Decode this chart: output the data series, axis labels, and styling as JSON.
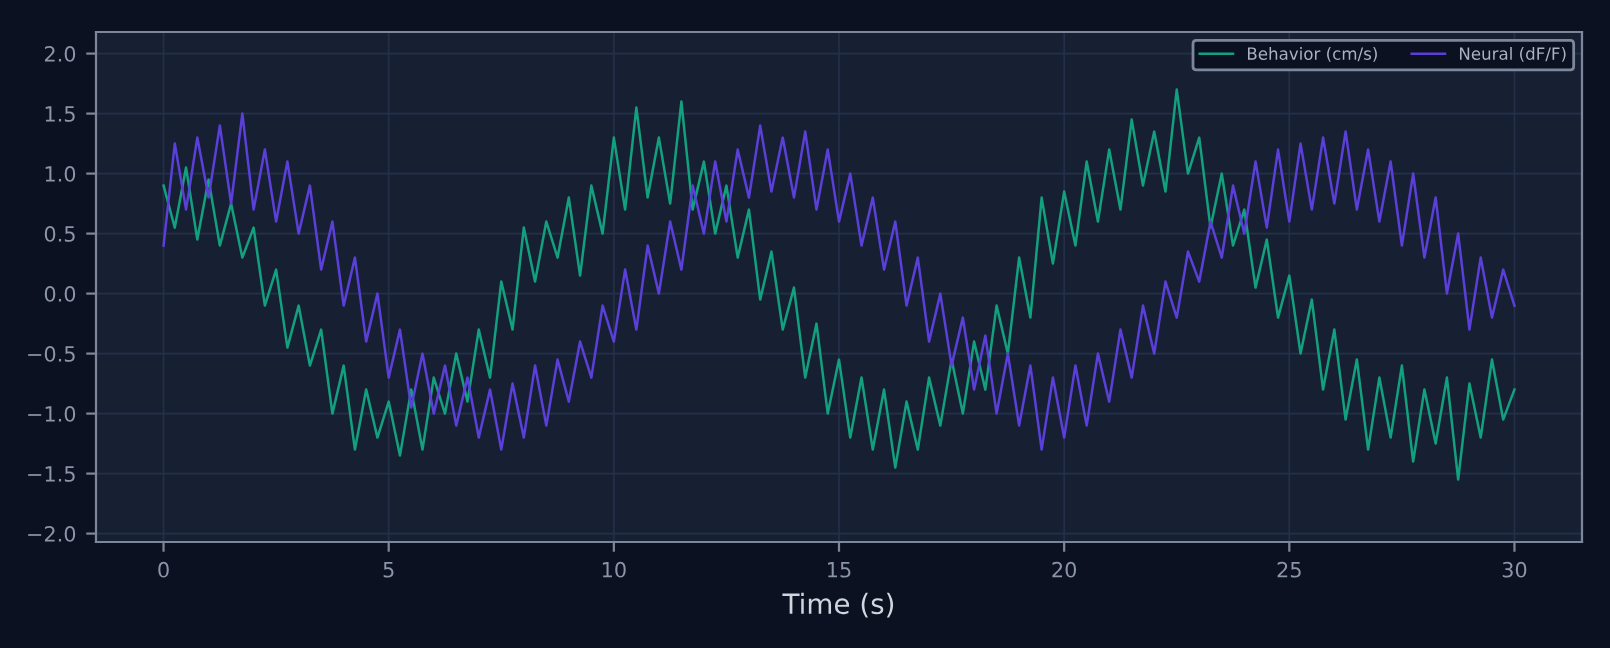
{
  "chart_data": {
    "type": "line",
    "xlabel": "Time (s)",
    "x": [
      0,
      0.25,
      0.5,
      0.75,
      1,
      1.25,
      1.5,
      1.75,
      2,
      2.25,
      2.5,
      2.75,
      3,
      3.25,
      3.5,
      3.75,
      4,
      4.25,
      4.5,
      4.75,
      5,
      5.25,
      5.5,
      5.75,
      6,
      6.25,
      6.5,
      6.75,
      7,
      7.25,
      7.5,
      7.75,
      8,
      8.25,
      8.5,
      8.75,
      9,
      9.25,
      9.5,
      9.75,
      10,
      10.25,
      10.5,
      10.75,
      11,
      11.25,
      11.5,
      11.75,
      12,
      12.25,
      12.5,
      12.75,
      13,
      13.25,
      13.5,
      13.75,
      14,
      14.25,
      14.5,
      14.75,
      15,
      15.25,
      15.5,
      15.75,
      16,
      16.25,
      16.5,
      16.75,
      17,
      17.25,
      17.5,
      17.75,
      18,
      18.25,
      18.5,
      18.75,
      19,
      19.25,
      19.5,
      19.75,
      20,
      20.25,
      20.5,
      20.75,
      21,
      21.25,
      21.5,
      21.75,
      22,
      22.25,
      22.5,
      22.75,
      23,
      23.25,
      23.5,
      23.75,
      24,
      24.25,
      24.5,
      24.75,
      25,
      25.25,
      25.5,
      25.75,
      26,
      26.25,
      26.5,
      26.75,
      27,
      27.25,
      27.5,
      27.75,
      28,
      28.25,
      28.5,
      28.75,
      29,
      29.25,
      29.5,
      29.75,
      30
    ],
    "series": [
      {
        "name": "Behavior (cm/s)",
        "color": "#13a07e",
        "values": [
          0.9,
          0.55,
          1.05,
          0.45,
          0.95,
          0.4,
          0.75,
          0.3,
          0.55,
          -0.1,
          0.2,
          -0.45,
          -0.1,
          -0.6,
          -0.3,
          -1.0,
          -0.6,
          -1.3,
          -0.8,
          -1.2,
          -0.9,
          -1.35,
          -0.8,
          -1.3,
          -0.7,
          -1.0,
          -0.5,
          -0.9,
          -0.3,
          -0.7,
          0.1,
          -0.3,
          0.55,
          0.1,
          0.6,
          0.3,
          0.8,
          0.15,
          0.9,
          0.5,
          1.3,
          0.7,
          1.55,
          0.8,
          1.3,
          0.75,
          1.6,
          0.7,
          1.1,
          0.5,
          0.9,
          0.3,
          0.7,
          -0.05,
          0.35,
          -0.3,
          0.05,
          -0.7,
          -0.25,
          -1.0,
          -0.55,
          -1.2,
          -0.7,
          -1.3,
          -0.8,
          -1.45,
          -0.9,
          -1.3,
          -0.7,
          -1.1,
          -0.55,
          -1.0,
          -0.4,
          -0.8,
          -0.1,
          -0.5,
          0.3,
          -0.2,
          0.8,
          0.25,
          0.85,
          0.4,
          1.1,
          0.6,
          1.2,
          0.7,
          1.45,
          0.9,
          1.35,
          0.85,
          1.7,
          1.0,
          1.3,
          0.55,
          1.0,
          0.4,
          0.7,
          0.05,
          0.45,
          -0.2,
          0.15,
          -0.5,
          -0.05,
          -0.8,
          -0.3,
          -1.05,
          -0.55,
          -1.3,
          -0.7,
          -1.2,
          -0.6,
          -1.4,
          -0.8,
          -1.25,
          -0.7,
          -1.55,
          -0.75,
          -1.2,
          -0.55,
          -1.05,
          -0.8
        ]
      },
      {
        "name": "Neural (dF/F)",
        "color": "#5a3fd8",
        "values": [
          0.4,
          1.25,
          0.7,
          1.3,
          0.8,
          1.4,
          0.75,
          1.5,
          0.7,
          1.2,
          0.6,
          1.1,
          0.5,
          0.9,
          0.2,
          0.6,
          -0.1,
          0.3,
          -0.4,
          0.0,
          -0.7,
          -0.3,
          -0.95,
          -0.5,
          -1.0,
          -0.6,
          -1.1,
          -0.7,
          -1.2,
          -0.8,
          -1.3,
          -0.75,
          -1.2,
          -0.6,
          -1.1,
          -0.55,
          -0.9,
          -0.4,
          -0.7,
          -0.1,
          -0.4,
          0.2,
          -0.3,
          0.4,
          0.0,
          0.6,
          0.2,
          0.9,
          0.5,
          1.1,
          0.6,
          1.2,
          0.8,
          1.4,
          0.85,
          1.3,
          0.8,
          1.35,
          0.7,
          1.2,
          0.6,
          1.0,
          0.4,
          0.8,
          0.2,
          0.6,
          -0.1,
          0.3,
          -0.4,
          0.0,
          -0.6,
          -0.2,
          -0.8,
          -0.35,
          -1.0,
          -0.5,
          -1.1,
          -0.6,
          -1.3,
          -0.7,
          -1.2,
          -0.6,
          -1.1,
          -0.5,
          -0.9,
          -0.3,
          -0.7,
          -0.1,
          -0.5,
          0.1,
          -0.2,
          0.35,
          0.1,
          0.6,
          0.3,
          0.9,
          0.5,
          1.1,
          0.55,
          1.2,
          0.6,
          1.25,
          0.7,
          1.3,
          0.75,
          1.35,
          0.7,
          1.2,
          0.6,
          1.1,
          0.4,
          1.0,
          0.3,
          0.8,
          0.0,
          0.5,
          -0.3,
          0.3,
          -0.2,
          0.2,
          -0.1
        ]
      }
    ],
    "xlim": [
      -1.5,
      31.5
    ],
    "xticks": [
      0,
      5,
      10,
      15,
      20,
      25,
      30
    ],
    "ylim": [
      -2.07,
      2.18
    ],
    "yticks": [
      {
        "value": -2.0,
        "label": "−2.0"
      },
      {
        "value": -1.5,
        "label": "−1.5"
      },
      {
        "value": -1.0,
        "label": "−1.0"
      },
      {
        "value": -0.5,
        "label": "−0.5"
      },
      {
        "value": 0.0,
        "label": "0.0"
      },
      {
        "value": 0.5,
        "label": "0.5"
      },
      {
        "value": 1.0,
        "label": "1.0"
      },
      {
        "value": 1.5,
        "label": "1.5"
      },
      {
        "value": 2.0,
        "label": "2.0"
      }
    ],
    "grid": true,
    "legend": "top right",
    "marker": "none",
    "line_style": "solid"
  }
}
